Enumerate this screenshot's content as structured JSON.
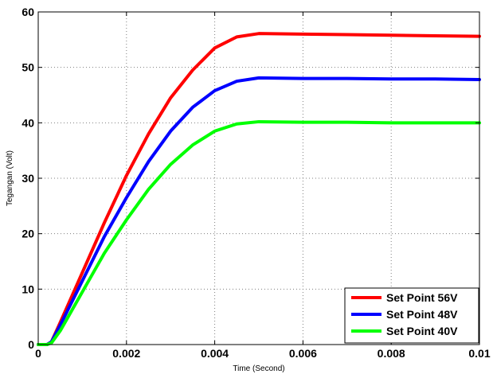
{
  "chart_data": {
    "type": "line",
    "title": "",
    "xlabel": "Time (Second)",
    "ylabel": "Tegangan (Volt)",
    "xlim": [
      0,
      0.01
    ],
    "ylim": [
      0,
      60
    ],
    "x_ticks": [
      0,
      0.002,
      0.004,
      0.006,
      0.008,
      0.01
    ],
    "x_tick_labels": [
      "0",
      "0.002",
      "0.004",
      "0.006",
      "0.008",
      "0.01"
    ],
    "y_ticks": [
      0,
      10,
      20,
      30,
      40,
      50,
      60
    ],
    "y_tick_labels": [
      "0",
      "10",
      "20",
      "30",
      "40",
      "50",
      "60"
    ],
    "grid": true,
    "legend_position": "bottom-right",
    "series": [
      {
        "name": "Set Point 56V",
        "color": "#ff0000",
        "x": [
          0,
          0.0002,
          0.0003,
          0.0005,
          0.001,
          0.0015,
          0.002,
          0.0025,
          0.003,
          0.0035,
          0.004,
          0.0045,
          0.005,
          0.006,
          0.007,
          0.008,
          0.009,
          0.01
        ],
        "y": [
          0,
          0,
          0.5,
          4,
          13,
          22,
          30.5,
          38,
          44.5,
          49.5,
          53.5,
          55.5,
          56.1,
          56.0,
          55.9,
          55.8,
          55.7,
          55.6
        ]
      },
      {
        "name": "Set Point 48V",
        "color": "#0000ff",
        "x": [
          0,
          0.0002,
          0.0003,
          0.0005,
          0.001,
          0.0015,
          0.002,
          0.0025,
          0.003,
          0.0035,
          0.004,
          0.0045,
          0.005,
          0.006,
          0.007,
          0.008,
          0.009,
          0.01
        ],
        "y": [
          0,
          0,
          0.5,
          3.5,
          11.5,
          19.5,
          26.5,
          33,
          38.5,
          42.8,
          45.8,
          47.5,
          48.1,
          48.0,
          48.0,
          47.9,
          47.9,
          47.8
        ]
      },
      {
        "name": "Set Point 40V",
        "color": "#00ff00",
        "x": [
          0,
          0.0002,
          0.0003,
          0.0005,
          0.001,
          0.0015,
          0.002,
          0.0025,
          0.003,
          0.0035,
          0.004,
          0.0045,
          0.005,
          0.006,
          0.007,
          0.008,
          0.009,
          0.01
        ],
        "y": [
          0,
          0,
          0.3,
          2.5,
          9.5,
          16.5,
          22.5,
          28,
          32.5,
          36,
          38.5,
          39.8,
          40.2,
          40.1,
          40.1,
          40.0,
          40.0,
          40.0
        ]
      }
    ]
  }
}
